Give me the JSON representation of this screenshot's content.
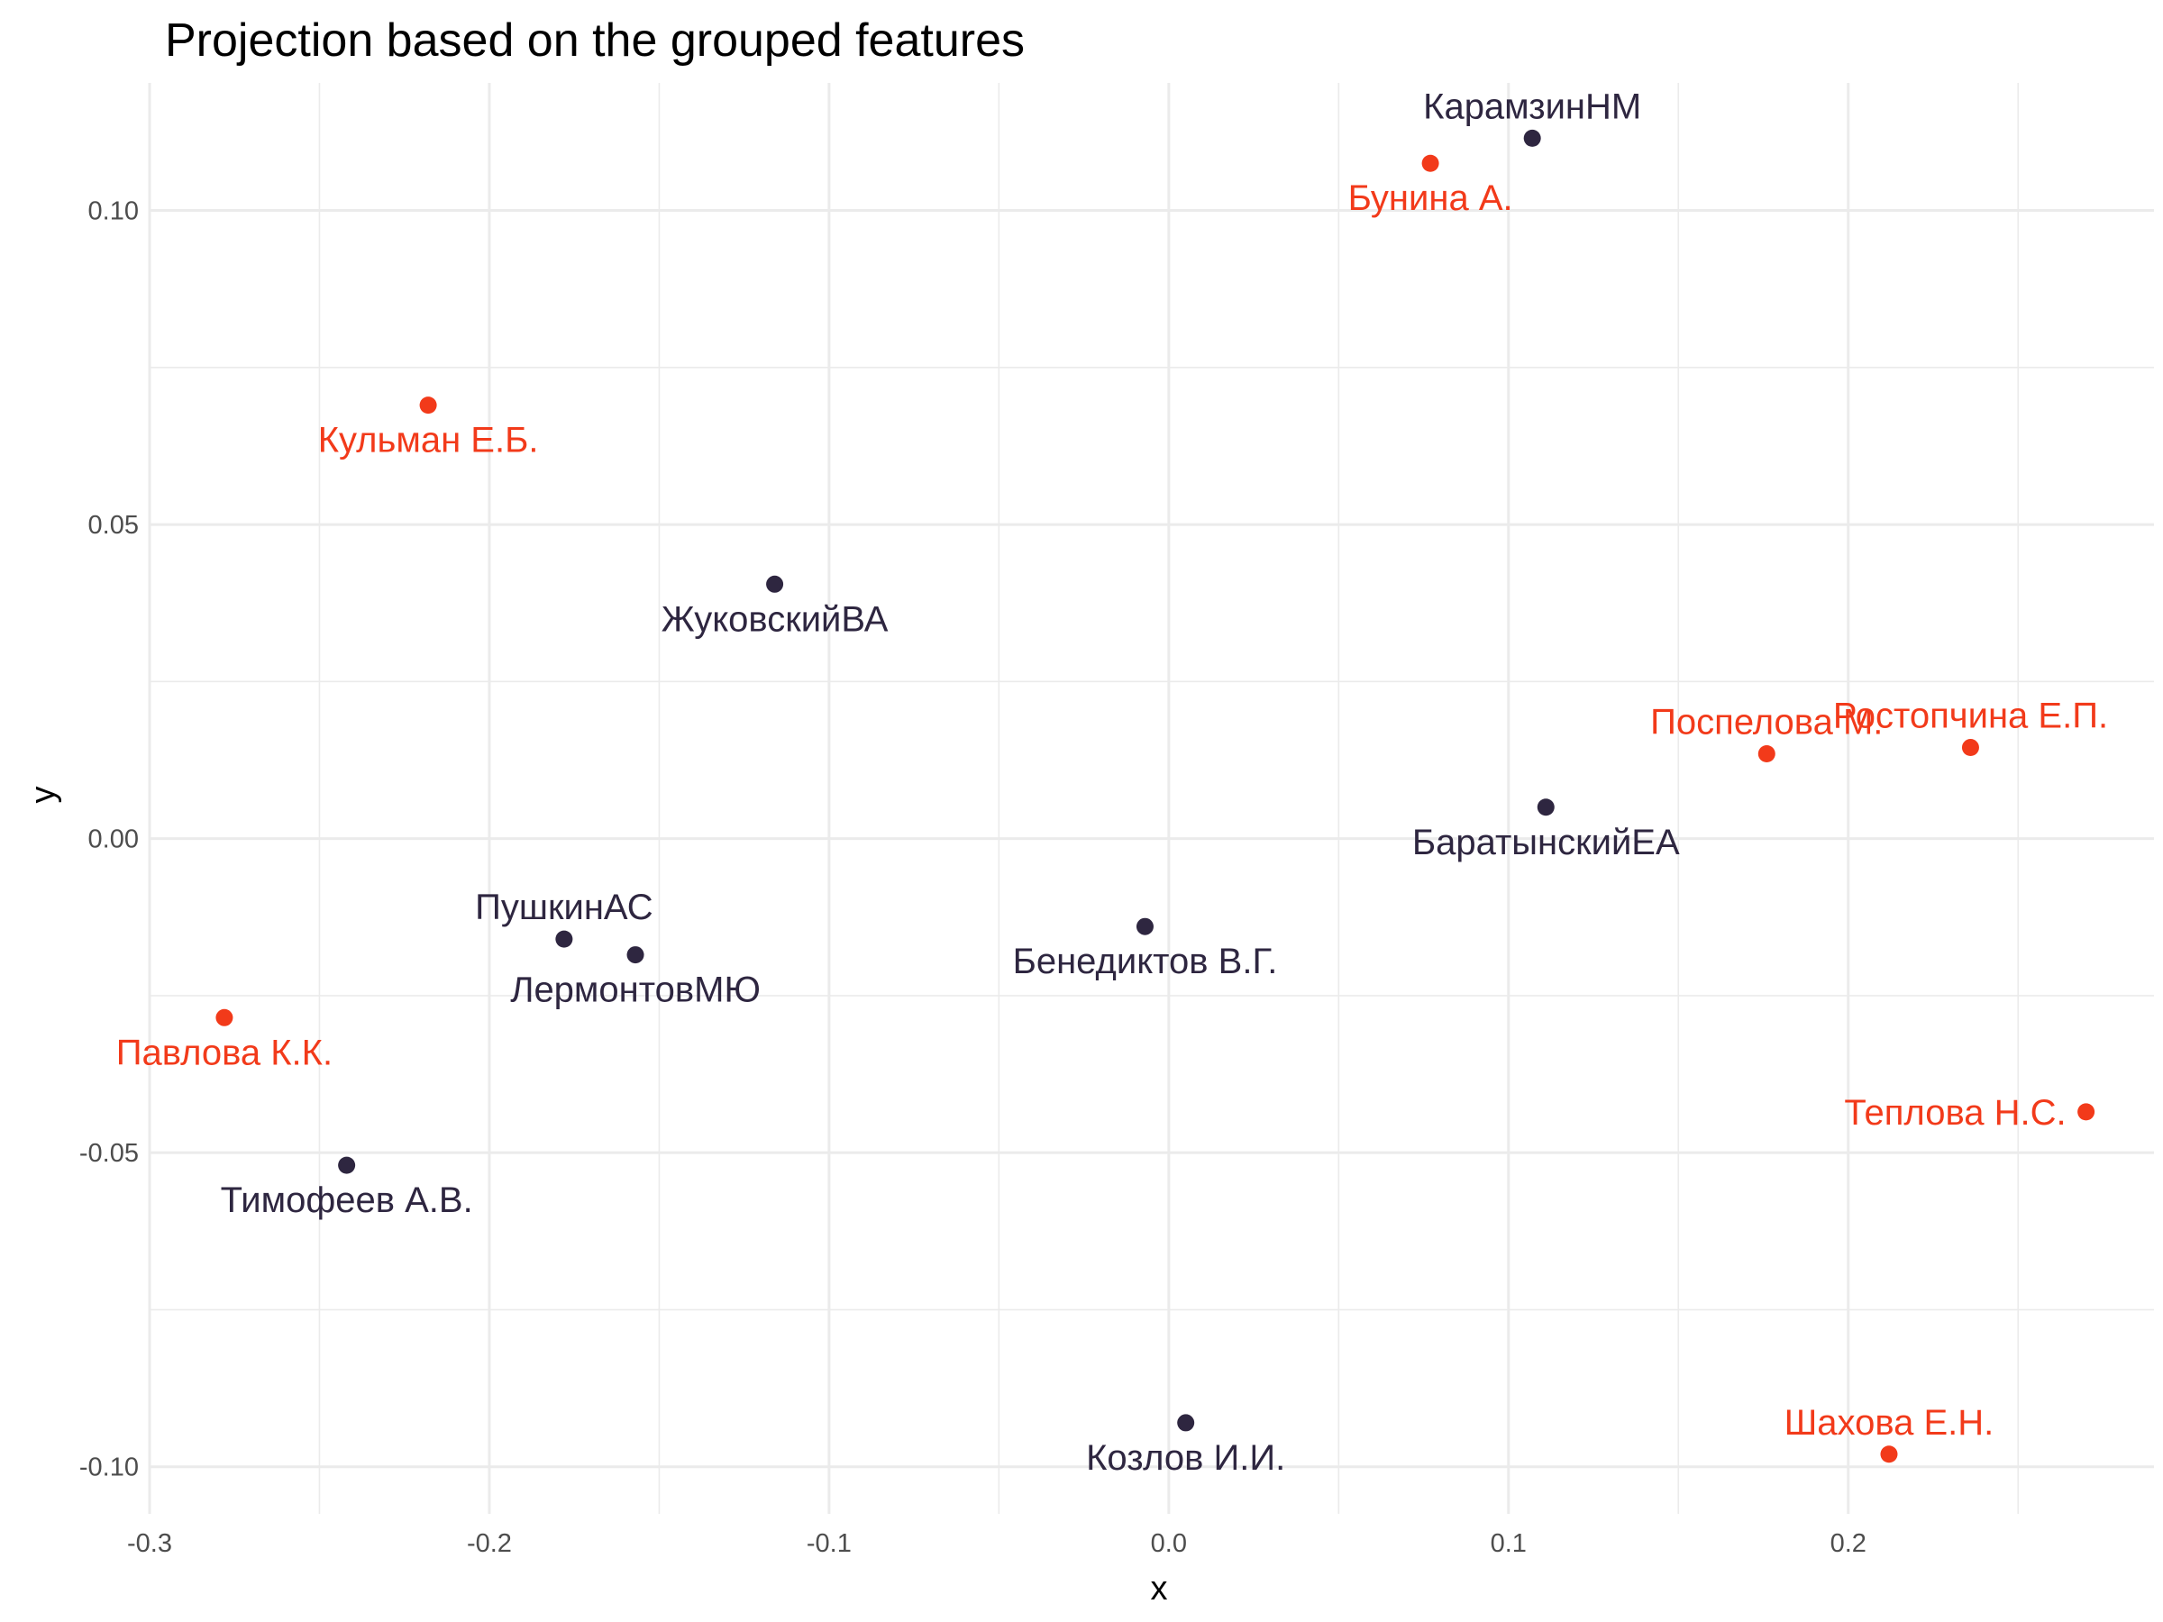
{
  "chart_data": {
    "type": "scatter",
    "title": "Projection based on the grouped features",
    "xlabel": "x",
    "ylabel": "y",
    "xlim": [
      -0.3,
      0.29
    ],
    "ylim": [
      -0.1075,
      0.1203
    ],
    "x_ticks": [
      -0.3,
      -0.2,
      -0.1,
      0.0,
      0.1,
      0.2
    ],
    "x_tick_labels": [
      "-0.3",
      "-0.2",
      "-0.1",
      "0.0",
      "0.1",
      "0.2"
    ],
    "y_ticks": [
      -0.1,
      -0.05,
      0.0,
      0.05,
      0.1
    ],
    "y_tick_labels": [
      "-0.10",
      "-0.05",
      "0.00",
      "0.05",
      "0.10"
    ],
    "grid": true,
    "legend": "none",
    "colors": {
      "group_a": "#2e2640",
      "group_b": "#f23a1a"
    },
    "points": [
      {
        "label": "КарамзинНМ",
        "x": 0.107,
        "y": 0.1115,
        "group": "group_a",
        "label_pos": "above"
      },
      {
        "label": "Бунина А.",
        "x": 0.077,
        "y": 0.1075,
        "group": "group_b",
        "label_pos": "below"
      },
      {
        "label": "Кульман Е.Б.",
        "x": -0.218,
        "y": 0.069,
        "group": "group_b",
        "label_pos": "below"
      },
      {
        "label": "ЖуковскийВА",
        "x": -0.116,
        "y": 0.0405,
        "group": "group_a",
        "label_pos": "below"
      },
      {
        "label": "Поспелова М.",
        "x": 0.176,
        "y": 0.0135,
        "group": "group_b",
        "label_pos": "above"
      },
      {
        "label": "Ростопчина Е.П.",
        "x": 0.236,
        "y": 0.0145,
        "group": "group_b",
        "label_pos": "above"
      },
      {
        "label": "БаратынскийЕА",
        "x": 0.111,
        "y": 0.005,
        "group": "group_a",
        "label_pos": "below"
      },
      {
        "label": "ПушкинАС",
        "x": -0.178,
        "y": -0.016,
        "group": "group_a",
        "label_pos": "above"
      },
      {
        "label": "ЛермонтовМЮ",
        "x": -0.157,
        "y": -0.0185,
        "group": "group_a",
        "label_pos": "below"
      },
      {
        "label": "Бенедиктов В.Г.",
        "x": -0.007,
        "y": -0.014,
        "group": "group_a",
        "label_pos": "below"
      },
      {
        "label": "Павлова К.К.",
        "x": -0.278,
        "y": -0.0285,
        "group": "group_b",
        "label_pos": "below"
      },
      {
        "label": "Тимофеев А.В.",
        "x": -0.242,
        "y": -0.052,
        "group": "group_a",
        "label_pos": "below"
      },
      {
        "label": "Теплова Н.С.",
        "x": 0.27,
        "y": -0.0435,
        "group": "group_b",
        "label_pos": "left"
      },
      {
        "label": "Козлов И.И.",
        "x": 0.005,
        "y": -0.093,
        "group": "group_a",
        "label_pos": "below"
      },
      {
        "label": "Шахова Е.Н.",
        "x": 0.212,
        "y": -0.098,
        "group": "group_b",
        "label_pos": "above"
      }
    ]
  }
}
